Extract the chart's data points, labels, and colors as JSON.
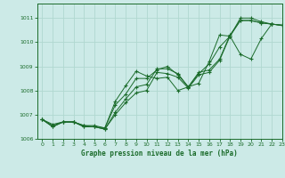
{
  "title": "Graphe pression niveau de la mer (hPa)",
  "bg_color": "#cceae7",
  "line_color": "#1a6b2a",
  "grid_color": "#b0d8d0",
  "xlim": [
    -0.5,
    23
  ],
  "ylim": [
    1006.0,
    1011.6
  ],
  "yticks": [
    1006,
    1007,
    1008,
    1009,
    1010,
    1011
  ],
  "xticks": [
    0,
    1,
    2,
    3,
    4,
    5,
    6,
    7,
    8,
    9,
    10,
    11,
    12,
    13,
    14,
    15,
    16,
    17,
    18,
    19,
    20,
    21,
    22,
    23
  ],
  "series": [
    [
      1006.8,
      1006.5,
      1006.7,
      1006.7,
      1006.5,
      1006.5,
      1006.4,
      1007.0,
      1007.5,
      1007.9,
      1008.0,
      1008.75,
      1008.7,
      1008.55,
      1008.1,
      1008.65,
      1008.75,
      1009.25,
      1010.25,
      1010.9,
      1010.9,
      1010.8,
      1010.75,
      1010.7
    ],
    [
      1006.8,
      1006.5,
      1006.7,
      1006.7,
      1006.5,
      1006.5,
      1006.4,
      1007.1,
      1007.65,
      1008.15,
      1008.25,
      1008.9,
      1008.9,
      1008.7,
      1008.15,
      1008.75,
      1008.85,
      1009.3,
      1010.3,
      1010.9,
      1010.9,
      1010.8,
      1010.75,
      1010.7
    ],
    [
      1006.8,
      1006.6,
      1006.7,
      1006.7,
      1006.55,
      1006.55,
      1006.45,
      1007.4,
      1007.85,
      1008.5,
      1008.5,
      1008.85,
      1009.0,
      1008.65,
      1008.15,
      1008.7,
      1009.1,
      1009.8,
      1010.25,
      1011.0,
      1011.0,
      1010.85,
      1010.75,
      1010.7
    ],
    [
      1006.8,
      1006.55,
      1006.7,
      1006.7,
      1006.55,
      1006.5,
      1006.45,
      1007.55,
      1008.2,
      1008.8,
      1008.6,
      1008.5,
      1008.55,
      1008.0,
      1008.15,
      1008.3,
      1009.2,
      1010.3,
      1010.25,
      1009.5,
      1009.3,
      1010.15,
      1010.75,
      1010.7
    ]
  ]
}
